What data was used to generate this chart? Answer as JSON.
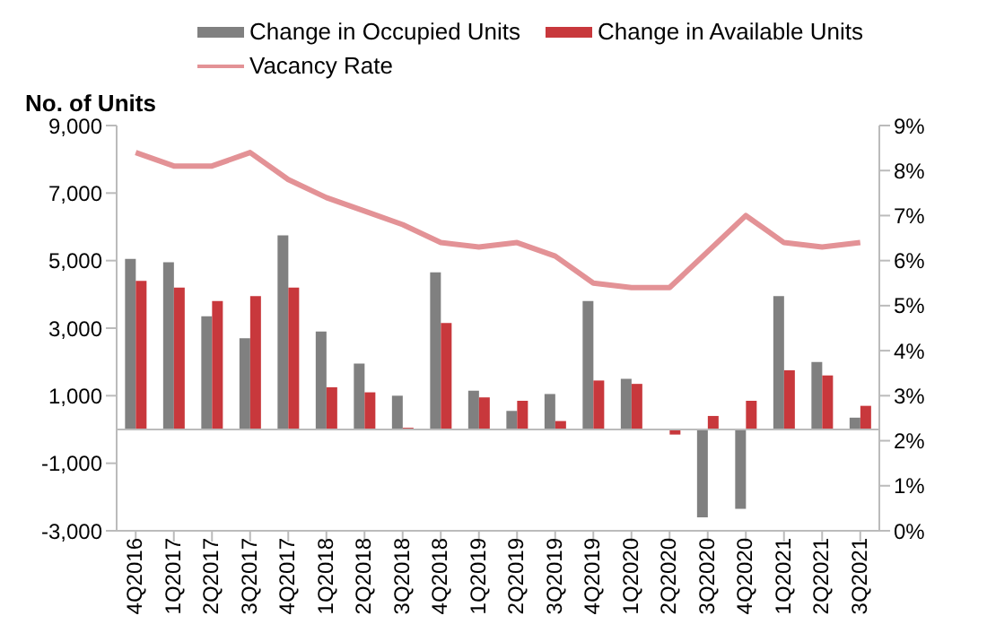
{
  "chart_data": {
    "type": "bar",
    "ylabel": "No. of Units",
    "categories": [
      "4Q2016",
      "1Q2017",
      "2Q2017",
      "3Q2017",
      "4Q2017",
      "1Q2018",
      "2Q2018",
      "3Q2018",
      "4Q2018",
      "1Q2019",
      "2Q2019",
      "3Q2019",
      "4Q2019",
      "1Q2020",
      "2Q2020",
      "3Q2020",
      "4Q2020",
      "1Q2021",
      "2Q2021",
      "3Q2021"
    ],
    "series": [
      {
        "name": "Change in Occupied Units",
        "color": "#808080",
        "values": [
          5050,
          4950,
          3350,
          2700,
          5750,
          2900,
          1950,
          1000,
          4650,
          1150,
          550,
          1050,
          3800,
          1500,
          0,
          -2600,
          -2350,
          3950,
          2000,
          350
        ]
      },
      {
        "name": "Change in Available Units",
        "color": "#c8383c",
        "values": [
          4400,
          4200,
          3800,
          3950,
          4200,
          1250,
          1100,
          50,
          3150,
          950,
          850,
          250,
          1450,
          1350,
          -150,
          400,
          850,
          1750,
          1600,
          700
        ]
      },
      {
        "name": "Vacancy Rate",
        "type": "line",
        "axis": "y2",
        "color": "#e39296",
        "values": [
          8.4,
          8.1,
          8.1,
          8.4,
          7.8,
          7.4,
          7.1,
          6.8,
          6.4,
          6.3,
          6.4,
          6.1,
          5.5,
          5.4,
          5.4,
          6.2,
          7.0,
          6.4,
          6.3,
          6.4
        ]
      }
    ],
    "ylim": [
      -3000,
      9000
    ],
    "yticks": [
      {
        "value": -3000,
        "label": "-3,000"
      },
      {
        "value": -1000,
        "label": "-1,000"
      },
      {
        "value": 1000,
        "label": "1,000"
      },
      {
        "value": 3000,
        "label": "3,000"
      },
      {
        "value": 5000,
        "label": "5,000"
      },
      {
        "value": 7000,
        "label": "7,000"
      },
      {
        "value": 9000,
        "label": "9,000"
      }
    ],
    "y2lim": [
      0,
      9
    ],
    "y2ticks": [
      {
        "value": 0,
        "label": "0%"
      },
      {
        "value": 1,
        "label": "1%"
      },
      {
        "value": 2,
        "label": "2%"
      },
      {
        "value": 3,
        "label": "3%"
      },
      {
        "value": 4,
        "label": "4%"
      },
      {
        "value": 5,
        "label": "5%"
      },
      {
        "value": 6,
        "label": "6%"
      },
      {
        "value": 7,
        "label": "7%"
      },
      {
        "value": 8,
        "label": "8%"
      },
      {
        "value": 9,
        "label": "9%"
      }
    ],
    "legend": "top",
    "marker": "none"
  }
}
